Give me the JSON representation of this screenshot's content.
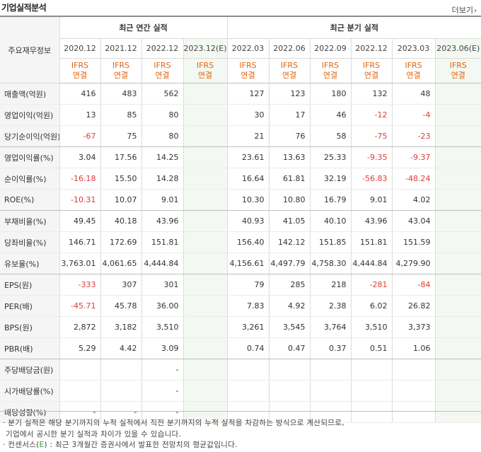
{
  "header": {
    "title": "기업실적분석",
    "more_label": "더보기",
    "more_icon": "chevron-right-icon"
  },
  "table": {
    "row_header_label": "주요재무정보",
    "groups": {
      "annual": "최근 연간 실적",
      "quarterly": "최근 분기 실적"
    },
    "periods": [
      "2020.12",
      "2021.12",
      "2022.12",
      "2023.12(E)",
      "2022.03",
      "2022.06",
      "2022.09",
      "2022.12",
      "2023.03",
      "2023.06(E)"
    ],
    "basis_top": "IFRS",
    "basis_bottom": "연결",
    "rows": [
      {
        "label": "매출액(억원)",
        "values": [
          "416",
          "483",
          "562",
          "",
          "127",
          "123",
          "180",
          "132",
          "48",
          ""
        ]
      },
      {
        "label": "영업이익(억원)",
        "values": [
          "13",
          "85",
          "80",
          "",
          "30",
          "17",
          "46",
          "-12",
          "-4",
          ""
        ]
      },
      {
        "label": "당기순이익(억원)",
        "values": [
          "-67",
          "75",
          "80",
          "",
          "21",
          "76",
          "58",
          "-75",
          "-23",
          ""
        ]
      },
      {
        "label": "영업이익률(%)",
        "values": [
          "3.04",
          "17.56",
          "14.25",
          "",
          "23.61",
          "13.63",
          "25.33",
          "-9.35",
          "-9.37",
          ""
        ]
      },
      {
        "label": "순이익률(%)",
        "values": [
          "-16.18",
          "15.50",
          "14.28",
          "",
          "16.64",
          "61.81",
          "32.19",
          "-56.83",
          "-48.24",
          ""
        ]
      },
      {
        "label": "ROE(%)",
        "values": [
          "-10.31",
          "10.07",
          "9.01",
          "",
          "10.30",
          "10.80",
          "16.79",
          "9.01",
          "4.02",
          ""
        ]
      },
      {
        "label": "부채비율(%)",
        "values": [
          "49.45",
          "40.18",
          "43.96",
          "",
          "40.93",
          "41.05",
          "40.10",
          "43.96",
          "43.04",
          ""
        ]
      },
      {
        "label": "당좌비율(%)",
        "values": [
          "146.71",
          "172.69",
          "151.81",
          "",
          "156.40",
          "142.12",
          "151.85",
          "151.81",
          "151.59",
          ""
        ]
      },
      {
        "label": "유보율(%)",
        "values": [
          "3,763.01",
          "4,061.65",
          "4,444.84",
          "",
          "4,156.61",
          "4,497.79",
          "4,758.30",
          "4,444.84",
          "4,279.90",
          ""
        ]
      },
      {
        "label": "EPS(원)",
        "values": [
          "-333",
          "307",
          "301",
          "",
          "79",
          "285",
          "218",
          "-281",
          "-84",
          ""
        ]
      },
      {
        "label": "PER(배)",
        "values": [
          "-45.71",
          "45.78",
          "36.00",
          "",
          "7.83",
          "4.92",
          "2.38",
          "6.02",
          "26.82",
          ""
        ]
      },
      {
        "label": "BPS(원)",
        "values": [
          "2,872",
          "3,182",
          "3,510",
          "",
          "3,261",
          "3,545",
          "3,764",
          "3,510",
          "3,373",
          ""
        ]
      },
      {
        "label": "PBR(배)",
        "values": [
          "5.29",
          "4.42",
          "3.09",
          "",
          "0.74",
          "0.47",
          "0.37",
          "0.51",
          "1.06",
          ""
        ]
      },
      {
        "label": "주당배당금(원)",
        "values": [
          "",
          "",
          "-",
          "",
          "",
          "",
          "",
          "",
          "",
          ""
        ]
      },
      {
        "label": "시가배당률(%)",
        "values": [
          "",
          "",
          "-",
          "",
          "",
          "",
          "",
          "",
          "",
          ""
        ]
      },
      {
        "label": "배당성향(%)",
        "values": [
          "-",
          "-",
          "-",
          "",
          "",
          "",
          "",
          "",
          "",
          ""
        ]
      }
    ]
  },
  "notes": {
    "line1": "· 분기 실적은 해당 분기까지의 누적 실적에서 직전 분기까지의 누적 실적을 차감하는 방식으로 계산되므로,",
    "line2": "기업에서 공시한 분기 실적과 차이가 있을 수 있습니다.",
    "line3_prefix": "· 컨센서스(",
    "line3_e": "E",
    "line3_suffix": ") : 최근 3개월간 증권사에서 발표한 전망치의 평균값입니다."
  },
  "colors": {
    "negative": "#e03a3a",
    "ifrs": "#e2640c",
    "estimate_bg": "#f3f9f2",
    "consensus_e": "#2e9a2e"
  }
}
